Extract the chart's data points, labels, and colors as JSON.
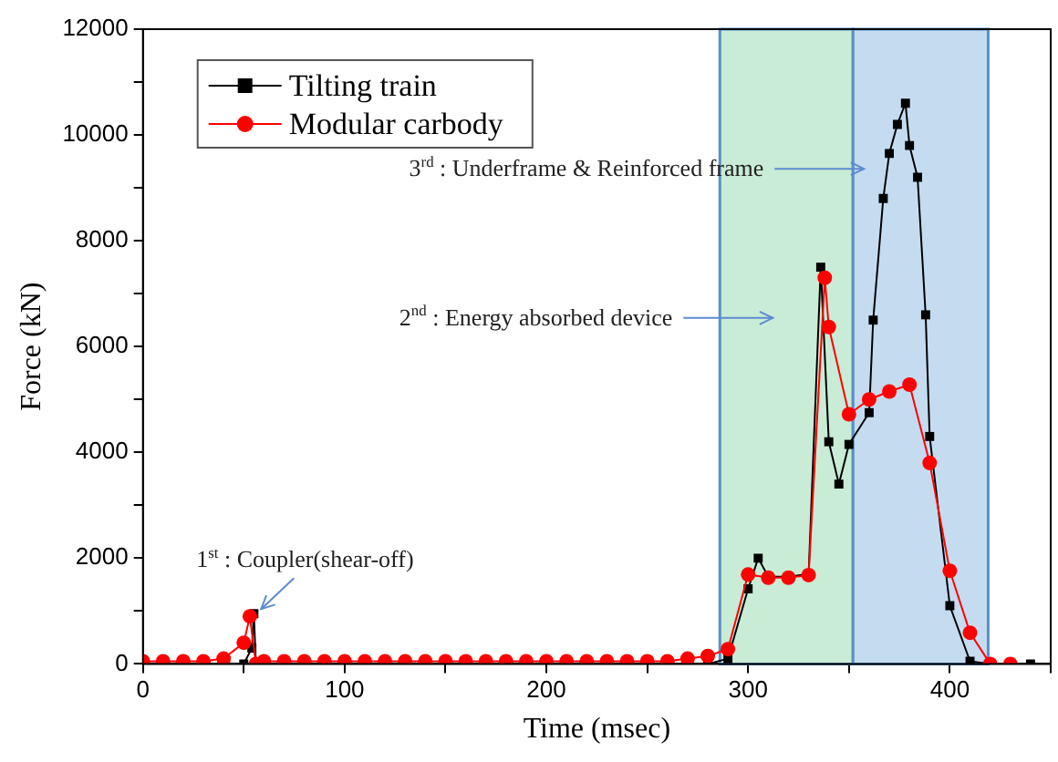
{
  "chart_data": {
    "type": "line",
    "xlabel": "Time (msec)",
    "ylabel": "Force (kN)",
    "xlim": [
      0,
      450
    ],
    "ylim": [
      0,
      12000
    ],
    "xticks": [
      0,
      {
        "value": 50,
        "label": null
      },
      100,
      {
        "value": 150,
        "label": null
      },
      200,
      {
        "value": 250,
        "label": null
      },
      300,
      {
        "value": 350,
        "label": null
      },
      400,
      {
        "value": 450,
        "label": null
      }
    ],
    "yticks": [
      0,
      {
        "value": 1000,
        "label": null
      },
      2000,
      {
        "value": 3000,
        "label": null
      },
      4000,
      {
        "value": 5000,
        "label": null
      },
      6000,
      {
        "value": 7000,
        "label": null
      },
      8000,
      {
        "value": 9000,
        "label": null
      },
      10000,
      {
        "value": 11000,
        "label": null
      },
      12000
    ],
    "grid": false,
    "legend": "top left",
    "line_style": "solid",
    "bands": [
      {
        "axis": "x",
        "from": 286,
        "to": 352,
        "color": "#c9ecd6"
      },
      {
        "axis": "x",
        "from": 352,
        "to": 419,
        "color": "#c5dcf0"
      }
    ],
    "annotations": [
      {
        "text": "1$^{st}$ : Coupler(shear-off)",
        "x": 55,
        "y": 900
      },
      "2$^{nd}$ : Energy absorbed device",
      "3$^{rd}$ : Underframe & Reinforced frame"
    ],
    "series": [
      {
        "name": "Tilting train",
        "color": "#000000",
        "marker": "square",
        "x": [
          0,
          10,
          20,
          30,
          40,
          50,
          54,
          55,
          56,
          60,
          70,
          80,
          90,
          100,
          110,
          120,
          130,
          140,
          150,
          160,
          170,
          180,
          190,
          200,
          210,
          220,
          230,
          240,
          250,
          260,
          270,
          280,
          290,
          300,
          305,
          310,
          320,
          330,
          336,
          340,
          345,
          350,
          360,
          362,
          367,
          370,
          374,
          378,
          380,
          384,
          388,
          390,
          400,
          410,
          420,
          430,
          440
        ],
        "values": [
          0,
          0,
          0,
          0,
          0,
          0,
          300,
          950,
          0,
          0,
          0,
          0,
          0,
          0,
          0,
          0,
          0,
          0,
          0,
          0,
          0,
          0,
          0,
          0,
          0,
          0,
          0,
          0,
          0,
          0,
          0,
          0,
          100,
          1420,
          2000,
          1650,
          1650,
          1700,
          7500,
          4200,
          3400,
          4150,
          4750,
          6500,
          8800,
          9650,
          10200,
          10600,
          9800,
          9200,
          6600,
          4300,
          1100,
          50,
          0,
          0,
          0
        ]
      },
      {
        "name": "Modular carbody",
        "color": "#ff0000",
        "marker": "circle",
        "x": [
          0,
          10,
          20,
          30,
          40,
          50,
          53,
          56,
          60,
          70,
          80,
          90,
          100,
          110,
          120,
          130,
          140,
          150,
          160,
          170,
          180,
          190,
          200,
          210,
          220,
          230,
          240,
          250,
          260,
          270,
          280,
          290,
          300,
          310,
          320,
          330,
          338,
          340,
          350,
          360,
          370,
          380,
          390,
          400,
          410,
          420,
          430
        ],
        "values": [
          50,
          50,
          50,
          50,
          100,
          400,
          900,
          0,
          50,
          50,
          50,
          50,
          50,
          50,
          50,
          50,
          50,
          50,
          50,
          50,
          50,
          50,
          50,
          50,
          50,
          50,
          50,
          50,
          50,
          100,
          150,
          280,
          1690,
          1630,
          1630,
          1680,
          7300,
          6370,
          4720,
          5000,
          5150,
          5280,
          3800,
          1760,
          590,
          0,
          0
        ]
      }
    ]
  }
}
